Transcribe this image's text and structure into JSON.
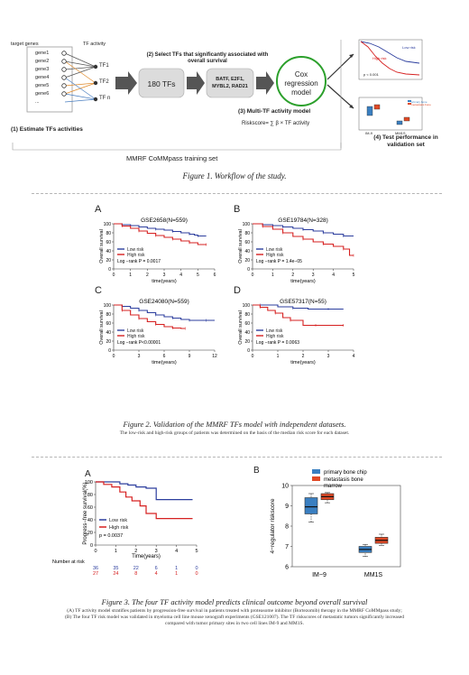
{
  "figure1": {
    "target_genes_label": "target genes",
    "tf_activity_label": "TF activity",
    "genes": [
      "gene1",
      "gene2",
      "gene3",
      "gene4",
      "gene5",
      "gene6",
      "..."
    ],
    "tfs": [
      "TF1",
      "TF2",
      "TF n"
    ],
    "step1_label": "(1) Estimate TFs activities",
    "step2_label": "(2) Select TFs that significantly associated with overall survival",
    "tf_count_label": "180 TFs",
    "selected_tfs": "BATF, E2F1, MYBL2, RAD21",
    "cox_label": "Cox regression model",
    "step3_label": "(3) Multi-TF activity model",
    "riskscore_formula": "Riskscore= ∑ β × TF activity",
    "training_set_label": "MMRF CoMMpass training set",
    "step4_label": "(4) Test performance in validation set",
    "mini_km": {
      "legend": [
        "Low risk",
        "High risk"
      ],
      "p": "p < 0.001"
    },
    "mini_box": {
      "groups": [
        "IM-9",
        "MM1S"
      ],
      "legend": [
        "primary bone",
        "metastasis bone"
      ]
    },
    "caption": "Figure 1. Workflow of the study."
  },
  "figure2": {
    "y_label": "Overall survival",
    "x_label": "time(years)",
    "legend_low": "Low risk",
    "legend_high": "High risk",
    "caption": "Figure 2. Validation of the MMRF TFs model with independent datasets.",
    "note": "The low-risk and high-risk groups of patients was determined on the  basis of the median  risk score for each dataset."
  },
  "figure3": {
    "panel_a_label": "A",
    "panel_b_label": "B",
    "caption": "Figure 3. The four TF activity model predicts clinical outcome beyond overall survival",
    "note_a": "(A) TF activity model stratifies patients by progression-free survival in patients treated with proteasome inhibitor (Bortezomib) therapy in the MMRF CoMMpass study;",
    "note_b": "(B) The four TF risk model was validated in myeloma cell line mouse xenograft experiments (GSE121007). The TF riskscores of metastatic tumors significantly increased",
    "note_c": "compared with tumor primary sites in two cell lines IM-9 and MM1S."
  },
  "chart_data": [
    {
      "type": "line",
      "panel": "A",
      "title": "GSE2658(N=559)",
      "xlabel": "time(years)",
      "ylabel": "Overall survival",
      "xlim": [
        0,
        6
      ],
      "ylim": [
        0,
        100
      ],
      "x_ticks": [
        0,
        1,
        2,
        3,
        4,
        5,
        6
      ],
      "y_ticks": [
        0,
        20,
        40,
        60,
        80,
        100
      ],
      "legend": "bottom-left",
      "annotation": "Log −rank P = 0.0017",
      "series": [
        {
          "name": "Low risk",
          "color": "#2c3e9e",
          "x": [
            0,
            0.5,
            1,
            1.5,
            2,
            2.5,
            3,
            3.5,
            4,
            4.5,
            4.8,
            5,
            5.5
          ],
          "y": [
            100,
            98,
            96,
            93,
            90,
            88,
            86,
            83,
            80,
            77,
            75,
            73,
            73
          ]
        },
        {
          "name": "High risk",
          "color": "#d62020",
          "x": [
            0,
            0.5,
            1,
            1.5,
            2,
            2.5,
            3,
            3.5,
            4,
            4.5,
            5,
            5.5
          ],
          "y": [
            100,
            95,
            90,
            84,
            79,
            74,
            70,
            66,
            62,
            58,
            54,
            54
          ]
        }
      ]
    },
    {
      "type": "line",
      "panel": "B",
      "title": "GSE19784(N=328)",
      "xlabel": "time(years)",
      "ylabel": "Overall survival",
      "xlim": [
        0,
        5
      ],
      "ylim": [
        0,
        100
      ],
      "x_ticks": [
        0,
        1,
        2,
        3,
        4,
        5
      ],
      "y_ticks": [
        0,
        20,
        40,
        60,
        80,
        100
      ],
      "legend": "bottom-left",
      "annotation": "Log −rank P = 1.4e−05",
      "series": [
        {
          "name": "Low risk",
          "color": "#2c3e9e",
          "x": [
            0,
            0.5,
            1,
            1.5,
            2,
            2.5,
            3,
            3.5,
            4,
            4.5,
            5
          ],
          "y": [
            100,
            98,
            96,
            93,
            90,
            87,
            84,
            80,
            77,
            73,
            73
          ]
        },
        {
          "name": "High risk",
          "color": "#d62020",
          "x": [
            0,
            0.5,
            1,
            1.5,
            2,
            2.5,
            3,
            3.5,
            4,
            4.5,
            4.8,
            5
          ],
          "y": [
            100,
            94,
            88,
            80,
            72,
            66,
            60,
            55,
            50,
            44,
            30,
            30
          ]
        }
      ]
    },
    {
      "type": "line",
      "panel": "C",
      "title": "GSE24080(N=559)",
      "xlabel": "time(years)",
      "ylabel": "Overall survival",
      "xlim": [
        0,
        12
      ],
      "ylim": [
        0,
        100
      ],
      "x_ticks": [
        0,
        3,
        6,
        9,
        12
      ],
      "y_ticks": [
        0,
        20,
        40,
        60,
        80,
        100
      ],
      "legend": "bottom-left",
      "annotation": "Log −rank P<0.00001",
      "series": [
        {
          "name": "Low risk",
          "color": "#2c3e9e",
          "x": [
            0,
            1,
            2,
            3,
            4,
            5,
            6,
            7,
            8,
            9,
            10,
            11,
            12
          ],
          "y": [
            100,
            97,
            93,
            88,
            83,
            78,
            74,
            71,
            68,
            66,
            66,
            66,
            66
          ]
        },
        {
          "name": "High risk",
          "color": "#d62020",
          "x": [
            0,
            1,
            2,
            3,
            4,
            5,
            6,
            7,
            8,
            8.5
          ],
          "y": [
            100,
            88,
            78,
            70,
            63,
            57,
            52,
            49,
            48,
            48
          ]
        }
      ]
    },
    {
      "type": "line",
      "panel": "D",
      "title": "GSE57317(N=55)",
      "xlabel": "time(years)",
      "ylabel": "Overall survival",
      "xlim": [
        0,
        4
      ],
      "ylim": [
        0,
        100
      ],
      "x_ticks": [
        0,
        1,
        2,
        3,
        4
      ],
      "y_ticks": [
        0,
        20,
        40,
        60,
        80,
        100
      ],
      "legend": "bottom-left",
      "annotation": "Log −rank P = 0.0063",
      "series": [
        {
          "name": "Low risk",
          "color": "#2c3e9e",
          "x": [
            0,
            0.3,
            1,
            1.6,
            2.2,
            3,
            3.6
          ],
          "y": [
            100,
            100,
            96,
            93,
            91,
            91,
            91
          ]
        },
        {
          "name": "High risk",
          "color": "#d62020",
          "x": [
            0,
            0.3,
            0.6,
            0.9,
            1.2,
            1.5,
            2,
            2.5,
            3,
            3.6
          ],
          "y": [
            100,
            95,
            88,
            82,
            72,
            66,
            55,
            55,
            55,
            55
          ]
        }
      ]
    },
    {
      "type": "line",
      "panel": "3A",
      "xlabel": "Time(years)",
      "ylabel": "Progress−free survival(%)",
      "xlim": [
        0,
        5
      ],
      "ylim": [
        0,
        100
      ],
      "x_ticks": [
        0,
        1,
        2,
        3,
        4,
        5
      ],
      "y_ticks": [
        0,
        20,
        40,
        60,
        80,
        100
      ],
      "legend": "bottom-left",
      "annotation": "p = 0.0037",
      "number_at_risk_label": "Number at risk",
      "series": [
        {
          "name": "Low risk",
          "color": "#2c3e9e",
          "x": [
            0,
            0.8,
            1.2,
            1.6,
            2,
            2.5,
            3,
            3.5,
            4,
            4.5,
            4.8
          ],
          "y": [
            100,
            100,
            97,
            95,
            92,
            90,
            72,
            72,
            72,
            72,
            72
          ],
          "at_risk": [
            36,
            35,
            22,
            6,
            1,
            0
          ]
        },
        {
          "name": "High risk",
          "color": "#d62020",
          "x": [
            0,
            0.4,
            0.8,
            1.2,
            1.5,
            1.8,
            2.2,
            2.5,
            3,
            3.5,
            4,
            4.8
          ],
          "y": [
            100,
            96,
            92,
            84,
            76,
            70,
            62,
            50,
            42,
            42,
            42,
            42
          ],
          "at_risk": [
            27,
            24,
            8,
            4,
            1,
            0
          ]
        }
      ]
    },
    {
      "type": "box",
      "panel": "3B",
      "ylabel": "4−regulator riskscore",
      "ylim": [
        6,
        10
      ],
      "y_ticks": [
        6,
        7,
        8,
        9,
        10
      ],
      "categories": [
        "IM−9",
        "MM1S"
      ],
      "legend": "top-right",
      "series": [
        {
          "name": "primary bone chip",
          "color": "#3a7fc1",
          "boxes": [
            {
              "min": 8.2,
              "q1": 8.6,
              "median": 8.95,
              "q3": 9.4,
              "max": 9.6
            },
            {
              "min": 6.5,
              "q1": 6.7,
              "median": 6.85,
              "q3": 7.0,
              "max": 7.1
            }
          ]
        },
        {
          "name": "metastasis bone marrow",
          "color": "#e04a26",
          "boxes": [
            {
              "min": 9.15,
              "q1": 9.3,
              "median": 9.45,
              "q3": 9.6,
              "max": 9.65
            },
            {
              "min": 7.05,
              "q1": 7.15,
              "median": 7.3,
              "q3": 7.45,
              "max": 7.6
            }
          ]
        }
      ]
    }
  ]
}
